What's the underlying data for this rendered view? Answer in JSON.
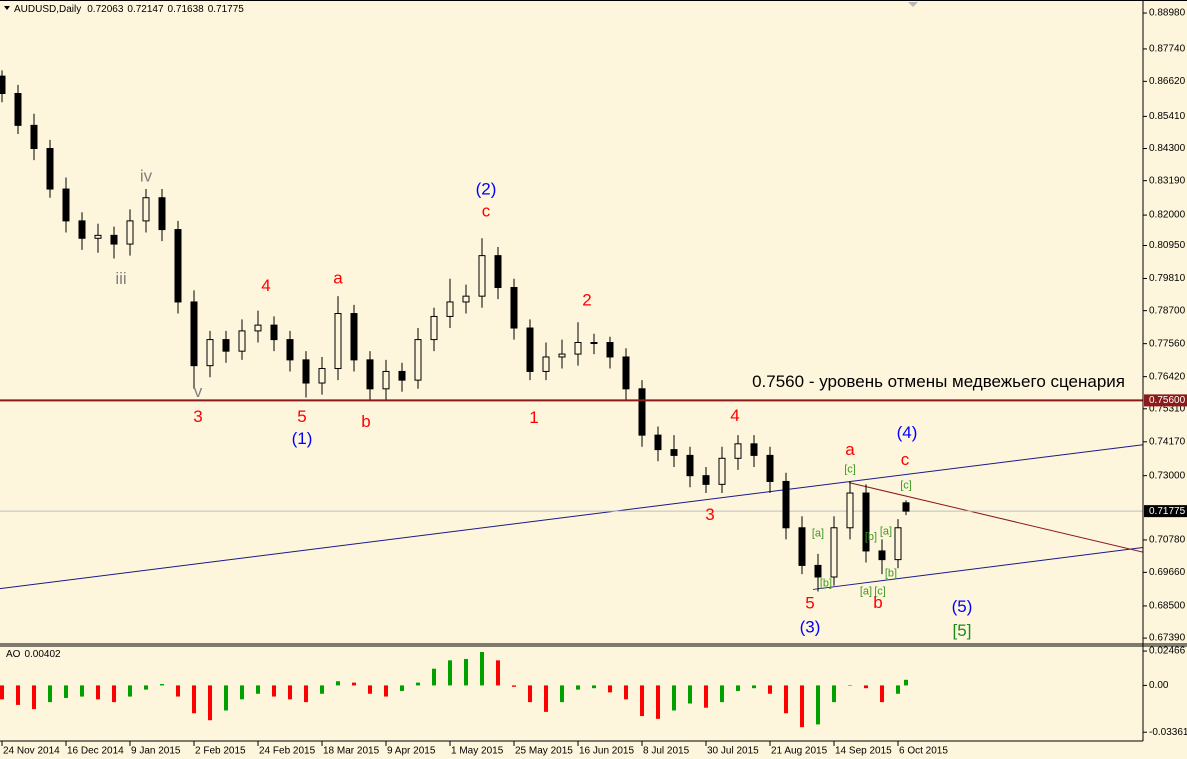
{
  "chart_data": [
    {
      "type": "candlestick",
      "title": "AUDUSD,Daily",
      "x": [
        0,
        4,
        8,
        12,
        16,
        20,
        24,
        28,
        32,
        36,
        40,
        44,
        48,
        52,
        56,
        60,
        64,
        68,
        72,
        76,
        80,
        84,
        88,
        92,
        96,
        100,
        104,
        108,
        112,
        116,
        120,
        124,
        128,
        132,
        136,
        140,
        144,
        148,
        152,
        156,
        160,
        164,
        168,
        172,
        176,
        180,
        184,
        188,
        192,
        196,
        200,
        204,
        208,
        212,
        216,
        220,
        224,
        226
      ],
      "open": [
        0.868,
        0.862,
        0.851,
        0.843,
        0.829,
        0.818,
        0.812,
        0.813,
        0.81,
        0.818,
        0.826,
        0.815,
        0.79,
        0.768,
        0.777,
        0.773,
        0.78,
        0.782,
        0.777,
        0.77,
        0.762,
        0.767,
        0.786,
        0.77,
        0.76,
        0.766,
        0.763,
        0.777,
        0.785,
        0.79,
        0.792,
        0.806,
        0.795,
        0.781,
        0.766,
        0.771,
        0.772,
        0.776,
        0.776,
        0.771,
        0.76,
        0.744,
        0.739,
        0.737,
        0.73,
        0.727,
        0.736,
        0.741,
        0.737,
        0.728,
        0.712,
        0.699,
        0.695,
        0.712,
        0.724,
        0.704,
        0.701,
        0.72063
      ],
      "high": [
        0.87,
        0.865,
        0.855,
        0.846,
        0.833,
        0.821,
        0.817,
        0.816,
        0.822,
        0.829,
        0.829,
        0.818,
        0.794,
        0.78,
        0.78,
        0.784,
        0.787,
        0.785,
        0.78,
        0.773,
        0.771,
        0.792,
        0.789,
        0.773,
        0.77,
        0.769,
        0.781,
        0.788,
        0.798,
        0.796,
        0.812,
        0.809,
        0.798,
        0.784,
        0.776,
        0.777,
        0.783,
        0.779,
        0.778,
        0.774,
        0.763,
        0.747,
        0.744,
        0.74,
        0.733,
        0.74,
        0.744,
        0.744,
        0.74,
        0.731,
        0.716,
        0.703,
        0.716,
        0.728,
        0.727,
        0.708,
        0.715,
        0.72147
      ],
      "low": [
        0.859,
        0.848,
        0.839,
        0.826,
        0.814,
        0.808,
        0.807,
        0.805,
        0.806,
        0.814,
        0.811,
        0.786,
        0.76,
        0.764,
        0.769,
        0.77,
        0.776,
        0.773,
        0.766,
        0.757,
        0.758,
        0.763,
        0.766,
        0.756,
        0.756,
        0.759,
        0.76,
        0.773,
        0.781,
        0.786,
        0.788,
        0.791,
        0.777,
        0.763,
        0.763,
        0.767,
        0.768,
        0.772,
        0.767,
        0.756,
        0.74,
        0.735,
        0.733,
        0.726,
        0.724,
        0.724,
        0.732,
        0.733,
        0.724,
        0.708,
        0.696,
        0.69,
        0.692,
        0.708,
        0.7,
        0.696,
        0.698,
        0.71638
      ],
      "close": [
        0.862,
        0.851,
        0.843,
        0.829,
        0.818,
        0.812,
        0.813,
        0.81,
        0.818,
        0.826,
        0.815,
        0.79,
        0.768,
        0.777,
        0.773,
        0.78,
        0.782,
        0.777,
        0.77,
        0.762,
        0.767,
        0.786,
        0.77,
        0.76,
        0.766,
        0.763,
        0.777,
        0.785,
        0.79,
        0.792,
        0.806,
        0.795,
        0.781,
        0.766,
        0.771,
        0.772,
        0.776,
        0.776,
        0.771,
        0.76,
        0.744,
        0.739,
        0.737,
        0.73,
        0.727,
        0.736,
        0.741,
        0.737,
        0.728,
        0.712,
        0.699,
        0.695,
        0.712,
        0.724,
        0.704,
        0.701,
        0.712,
        0.71775
      ],
      "up_color": "#fdf5dc",
      "down_color": "#000000",
      "xlim": [
        -0.5,
        285.25
      ],
      "ylim": [
        0.6722,
        0.8943
      ],
      "yticks": [
        {
          "value": 0.8898,
          "label": "0.88980"
        },
        {
          "value": 0.8774,
          "label": "0.87740"
        },
        {
          "value": 0.8662,
          "label": "0.86620"
        },
        {
          "value": 0.8541,
          "label": "0.85410"
        },
        {
          "value": 0.843,
          "label": "0.84300"
        },
        {
          "value": 0.8319,
          "label": "0.83190"
        },
        {
          "value": 0.82,
          "label": "0.82000"
        },
        {
          "value": 0.8095,
          "label": "0.80950"
        },
        {
          "value": 0.7981,
          "label": "0.79810"
        },
        {
          "value": 0.787,
          "label": "0.78700"
        },
        {
          "value": 0.7756,
          "label": "0.77560"
        },
        {
          "value": 0.7642,
          "label": "0.76420"
        },
        {
          "value": 0.7531,
          "label": "0.75310"
        },
        {
          "value": 0.7417,
          "label": "0.74170"
        },
        {
          "value": 0.73,
          "label": "0.73000"
        },
        {
          "value": 0.7078,
          "label": "0.70780"
        },
        {
          "value": 0.6966,
          "label": "0.69660"
        },
        {
          "value": 0.685,
          "label": "0.68500"
        },
        {
          "value": 0.6739,
          "label": "0.67390"
        }
      ],
      "hlines": [
        {
          "value": 0.756,
          "label": "0.75600",
          "text": "0.7560 - уровень отмены медвежьего сценария",
          "color": "#8b1a1a"
        }
      ],
      "trendlines": [
        {
          "x": [
            -0.5,
            285.25
          ],
          "y": [
            0.691,
            0.7407
          ],
          "color": "#1a1a8b"
        },
        {
          "x": [
            202.75,
            285.25
          ],
          "y": [
            0.6907,
            0.7052
          ],
          "color": "#1a1a8b"
        },
        {
          "x": [
            211.75,
            285.25
          ],
          "y": [
            0.7276,
            0.7036
          ],
          "color": "#8b1a1a"
        }
      ],
      "annotations": [
        {
          "text": "iv",
          "x": 36,
          "y": 0.8332,
          "color": "#808080"
        },
        {
          "text": "iii",
          "x": 29.75,
          "y": 0.7977,
          "color": "#808080"
        },
        {
          "text": "v",
          "x": 49,
          "y": 0.7587,
          "color": "#808080"
        },
        {
          "text": "3",
          "x": 49,
          "y": 0.7501,
          "color": "#ff0000"
        },
        {
          "text": "4",
          "x": 66,
          "y": 0.7953,
          "color": "#ff0000"
        },
        {
          "text": "5",
          "x": 75,
          "y": 0.7501,
          "color": "#ff0000"
        },
        {
          "text": "(1)",
          "x": 75,
          "y": 0.7425,
          "color": "#0000ff"
        },
        {
          "text": "a",
          "x": 84,
          "y": 0.798,
          "color": "#ff0000"
        },
        {
          "text": "b",
          "x": 91,
          "y": 0.7483,
          "color": "#ff0000"
        },
        {
          "text": "(2)",
          "x": 121,
          "y": 0.8287,
          "color": "#0000ff"
        },
        {
          "text": "c",
          "x": 121,
          "y": 0.8211,
          "color": "#ff0000"
        },
        {
          "text": "1",
          "x": 133,
          "y": 0.7497,
          "color": "#ff0000"
        },
        {
          "text": "2",
          "x": 146.25,
          "y": 0.7904,
          "color": "#ff0000"
        },
        {
          "text": "4",
          "x": 183.25,
          "y": 0.7504,
          "color": "#ff0000"
        },
        {
          "text": "3",
          "x": 177,
          "y": 0.7163,
          "color": "#ff0000"
        },
        {
          "text": "a",
          "x": 212,
          "y": 0.7387,
          "color": "#ff0000"
        },
        {
          "text": "(4)",
          "x": 226.25,
          "y": 0.7446,
          "color": "#0000ff"
        },
        {
          "text": "c",
          "x": 225.75,
          "y": 0.7352,
          "color": "#ff0000"
        },
        {
          "text": "[c]",
          "x": 212,
          "y": 0.7321,
          "color": "#3c9a1e",
          "level": "minor"
        },
        {
          "text": "[c]",
          "x": 226,
          "y": 0.7266,
          "color": "#3c9a1e",
          "level": "minor"
        },
        {
          "text": "[a]",
          "x": 204,
          "y": 0.71,
          "color": "#3c9a1e",
          "level": "minor"
        },
        {
          "text": "[b]",
          "x": 217.25,
          "y": 0.7087,
          "color": "#3c9a1e",
          "level": "minor"
        },
        {
          "text": "[a]",
          "x": 221,
          "y": 0.7107,
          "color": "#3c9a1e",
          "level": "minor"
        },
        {
          "text": "[b]",
          "x": 206,
          "y": 0.6928,
          "color": "#3c9a1e",
          "level": "minor"
        },
        {
          "text": "[b]",
          "x": 222.25,
          "y": 0.6962,
          "color": "#3c9a1e",
          "level": "minor"
        },
        {
          "text": "[a]",
          "x": 216,
          "y": 0.69,
          "color": "#3c9a1e",
          "level": "minor"
        },
        {
          "text": "[c]",
          "x": 219.5,
          "y": 0.69,
          "color": "#3c9a1e",
          "level": "minor"
        },
        {
          "text": "5",
          "x": 202,
          "y": 0.6856,
          "color": "#ff0000"
        },
        {
          "text": "b",
          "x": 219,
          "y": 0.6859,
          "color": "#ff0000"
        },
        {
          "text": "(3)",
          "x": 202,
          "y": 0.6773,
          "color": "#0000ff"
        },
        {
          "text": "(5)",
          "x": 240,
          "y": 0.6845,
          "color": "#0000ff"
        },
        {
          "text": "[5]",
          "x": 240,
          "y": 0.6762,
          "color": "#1e8a1e"
        }
      ]
    },
    {
      "type": "bar",
      "title": "AO",
      "x": [
        0,
        4,
        8,
        12,
        16,
        20,
        24,
        28,
        32,
        36,
        40,
        44,
        48,
        52,
        56,
        60,
        64,
        68,
        72,
        76,
        80,
        84,
        88,
        92,
        96,
        100,
        104,
        108,
        112,
        116,
        120,
        124,
        128,
        132,
        136,
        140,
        144,
        148,
        152,
        156,
        160,
        164,
        168,
        172,
        176,
        180,
        184,
        188,
        192,
        196,
        200,
        204,
        208,
        212,
        216,
        220,
        224,
        226
      ],
      "values": [
        -0.01,
        -0.014,
        -0.017,
        -0.012,
        -0.009,
        -0.008,
        -0.01,
        -0.012,
        -0.008,
        -0.003,
        0.001,
        -0.008,
        -0.02,
        -0.025,
        -0.018,
        -0.01,
        -0.006,
        -0.008,
        -0.01,
        -0.012,
        -0.006,
        0.003,
        0.002,
        -0.006,
        -0.008,
        -0.004,
        0.002,
        0.012,
        0.018,
        0.019,
        0.024,
        0.018,
        -0.001,
        -0.012,
        -0.019,
        -0.012,
        -0.003,
        -0.002,
        -0.005,
        -0.01,
        -0.022,
        -0.024,
        -0.018,
        -0.013,
        -0.016,
        -0.012,
        -0.004,
        -0.002,
        -0.006,
        -0.02,
        -0.03,
        -0.028,
        -0.012,
        0.0,
        -0.002,
        -0.012,
        -0.006,
        0.00402
      ],
      "up_color": "#00a000",
      "down_color": "#ff0000",
      "xlim": [
        -0.5,
        285.25
      ],
      "ylim": [
        -0.0392,
        0.0283
      ],
      "yticks": [
        0.02466,
        {
          "value": 0,
          "label": "0.00"
        },
        -0.03361
      ],
      "xticks": [
        {
          "value": 0,
          "label": "24 Nov 2014"
        },
        {
          "value": 16,
          "label": "16 Dec 2014"
        },
        {
          "value": 32,
          "label": "9 Jan 2015"
        },
        {
          "value": 48,
          "label": "2 Feb 2015"
        },
        {
          "value": 64,
          "label": "24 Feb 2015"
        },
        {
          "value": 80,
          "label": "18 Mar 2015"
        },
        {
          "value": 96,
          "label": "9 Apr 2015"
        },
        {
          "value": 112,
          "label": "1 May 2015"
        },
        {
          "value": 128,
          "label": "25 May 2015"
        },
        {
          "value": 144,
          "label": "16 Jun 2015"
        },
        {
          "value": 160,
          "label": "8 Jul 2015"
        },
        {
          "value": 176,
          "label": "30 Jul 2015"
        },
        {
          "value": 192,
          "label": "21 Aug 2015"
        },
        {
          "value": 208,
          "label": "14 Sep 2015"
        },
        {
          "value": 224,
          "label": "6 Oct 2015"
        }
      ]
    }
  ]
}
